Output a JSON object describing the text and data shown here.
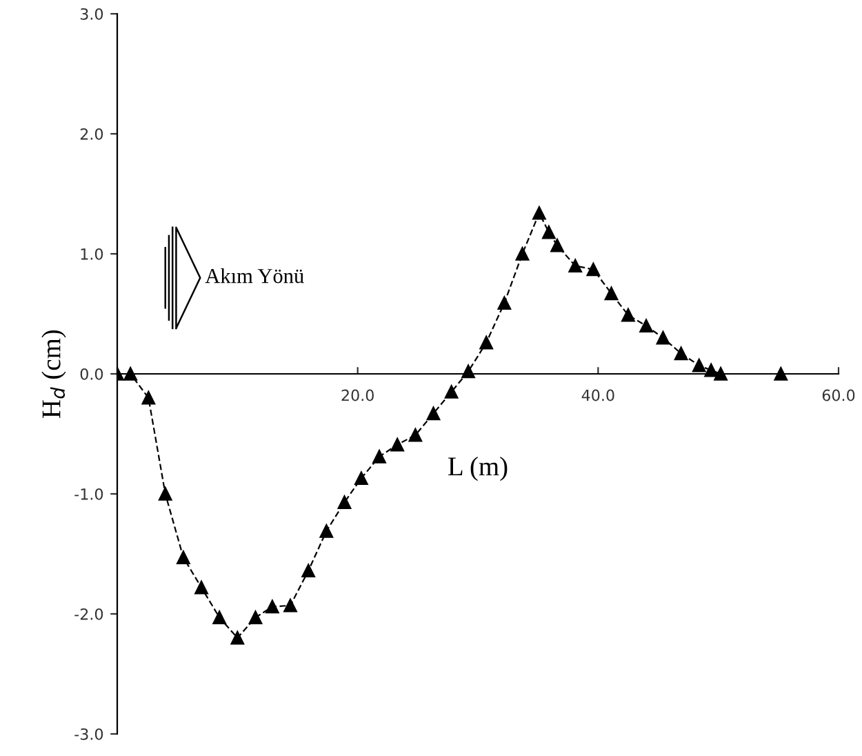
{
  "chart_data": {
    "type": "line",
    "xlabel": "L (m)",
    "ylabel": "H$_{d}$ (cm)",
    "annotations": [
      "Akım Yönü"
    ],
    "x": [
      0,
      1.1,
      2.6,
      4.0,
      5.5,
      7.0,
      8.5,
      10.0,
      11.5,
      12.9,
      14.4,
      15.9,
      17.4,
      18.9,
      20.3,
      21.8,
      23.3,
      24.8,
      26.3,
      27.8,
      29.2,
      30.7,
      32.2,
      33.7,
      35.1,
      35.9,
      36.6,
      38.1,
      39.6,
      41.1,
      42.5,
      44.0,
      45.4,
      46.9,
      48.4,
      49.4,
      50.2,
      55.2
    ],
    "series": [
      {
        "color": "#000000",
        "values": [
          0.0,
          0.0,
          -0.2,
          -1.0,
          -1.53,
          -1.78,
          -2.03,
          -2.2,
          -2.03,
          -1.94,
          -1.93,
          -1.64,
          -1.31,
          -1.07,
          -0.87,
          -0.69,
          -0.59,
          -0.51,
          -0.33,
          -0.15,
          0.02,
          0.26,
          0.59,
          1.0,
          1.34,
          1.18,
          1.07,
          0.9,
          0.87,
          0.67,
          0.49,
          0.4,
          0.3,
          0.17,
          0.07,
          0.03,
          0.0,
          0.0
        ]
      }
    ],
    "xlim": [
      0,
      60
    ],
    "ylim": [
      -3,
      3
    ],
    "xticks": [
      {
        "value": 0,
        "label": null
      },
      {
        "value": 20,
        "label": "20.0"
      },
      {
        "value": 40,
        "label": "40.0"
      },
      {
        "value": 60,
        "label": "60.0"
      }
    ],
    "yticks": [
      {
        "value": -3,
        "label": "-3.0"
      },
      {
        "value": -2,
        "label": "-2.0"
      },
      {
        "value": -1,
        "label": "-1.0"
      },
      {
        "value": 0,
        "label": "0.0"
      },
      {
        "value": 1,
        "label": "1.0"
      },
      {
        "value": 2,
        "label": "2.0"
      },
      {
        "value": 3,
        "label": "3.0"
      }
    ],
    "marker": "triangle",
    "line_style": "dashed",
    "grid": false,
    "legend": false
  }
}
